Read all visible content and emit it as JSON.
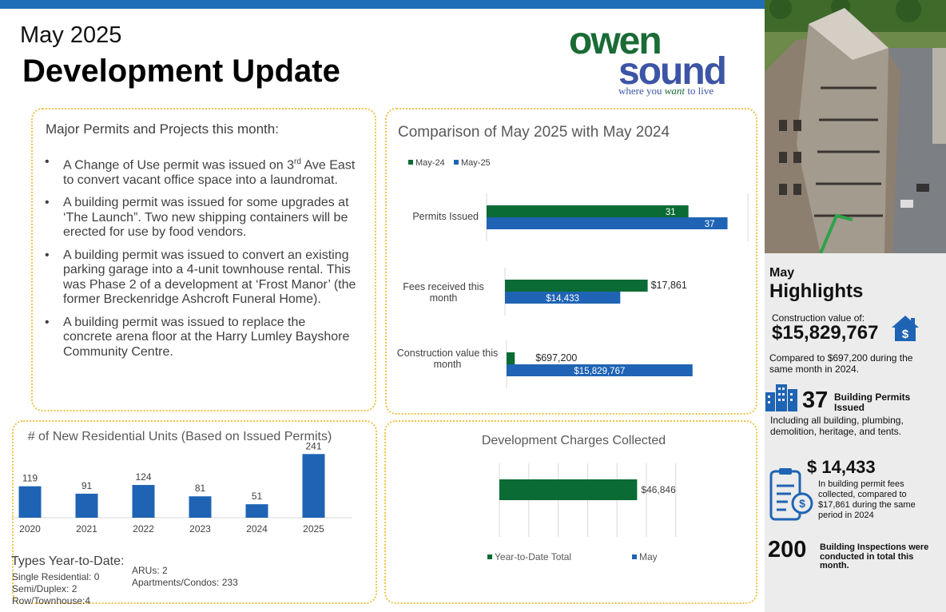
{
  "header": {
    "month": "May 2025",
    "title": "Development Update"
  },
  "logo": {
    "line1": "owen",
    "line2": "sound",
    "tagline_pre": "where you ",
    "tagline_em": "want",
    "tagline_post": " to live"
  },
  "permits": {
    "heading": "Major Permits and Projects  this month:",
    "item1_pre": " A Change of Use permit was issued on 3",
    "item1_sup": "rd",
    "item1_post": " Ave East to convert vacant office space into a laundromat.",
    "item2": "A building permit was issued for some upgrades at ‘The Launch”.  Two new shipping containers will be erected for use by food vendors.",
    "item3": "A building permit was issued to convert an existing parking garage into a 4-unit townhouse rental.  This was Phase 2 of a development at ‘Frost Manor’ (the former Breckenridge Ashcroft Funeral Home).",
    "item4": "A building permit was issued to replace the concrete arena floor at the Harry Lumley Bayshore Community Centre.",
    "bullet": "•"
  },
  "types": {
    "title": "Types Year-to-Date:",
    "single": "Single Residential: 0",
    "semi": "Semi/Duplex: 2",
    "row": "Row/Townhouse:4",
    "arus": "ARUs: 2",
    "apartments": "Apartments/Condos: 233"
  },
  "sidebar": {
    "month": "May",
    "title": "Highlights",
    "cv_label": "Construction value of:",
    "cv_value": "$15,829,767",
    "cv_note": "Compared to $697,200 during the same month in 2024.",
    "bp_num": "37",
    "bp_label": "Building Permits Issued",
    "bp_note": "Including all building, plumbing, demolition, heritage, and tents.",
    "fee_num": "$ 14,433",
    "fee_note": "In building permit fees collected, compared to $17,861 during the same period in 2024",
    "insp_num": "200",
    "insp_label": "Building Inspections were conducted in total this month."
  },
  "colors": {
    "green": "#0a6b34",
    "blue": "#1f64b4",
    "panel_border": "#f0c24a",
    "top_bar": "#1e6fb8",
    "logo_green": "#1a6b35",
    "logo_blue": "#3d55a5"
  },
  "icons": [
    "house-dollar-icon",
    "buildings-icon",
    "clipboard-dollar-icon"
  ],
  "chart_data": [
    {
      "type": "bar",
      "orientation": "horizontal",
      "title": "Comparison of May 2025 with May 2024",
      "legend_position": "top-left",
      "categories": [
        "Permits Issued",
        "Fees received this month",
        "Construction value this month"
      ],
      "series": [
        {
          "name": "May-24",
          "values": [
            31,
            17861,
            697200
          ],
          "labels": [
            "31",
            "$17,861",
            "$697,200"
          ],
          "color": "#0a6b34"
        },
        {
          "name": "May-25",
          "values": [
            37,
            14433,
            15829767
          ],
          "labels": [
            "37",
            "$14,433",
            "$15,829,767"
          ],
          "color": "#1f64b4"
        }
      ]
    },
    {
      "type": "bar",
      "title": "# of New Residential Units (Based on Issued Permits)",
      "categories": [
        "2020",
        "2021",
        "2022",
        "2023",
        "2024",
        "2025"
      ],
      "values": [
        119,
        91,
        124,
        81,
        51,
        241
      ],
      "color": "#1f64b4",
      "ylim": [
        0,
        260
      ],
      "grid": false
    },
    {
      "type": "bar",
      "orientation": "horizontal",
      "title": "Development Charges Collected",
      "legend_position": "bottom",
      "series": [
        {
          "name": "Year-to-Date Total",
          "value": 46846,
          "label": "$46,846",
          "color": "#0a6b34"
        },
        {
          "name": "May",
          "value": 0,
          "label": "",
          "color": "#1f64b4"
        }
      ],
      "xlim": [
        0,
        60000
      ],
      "grid": true
    }
  ]
}
